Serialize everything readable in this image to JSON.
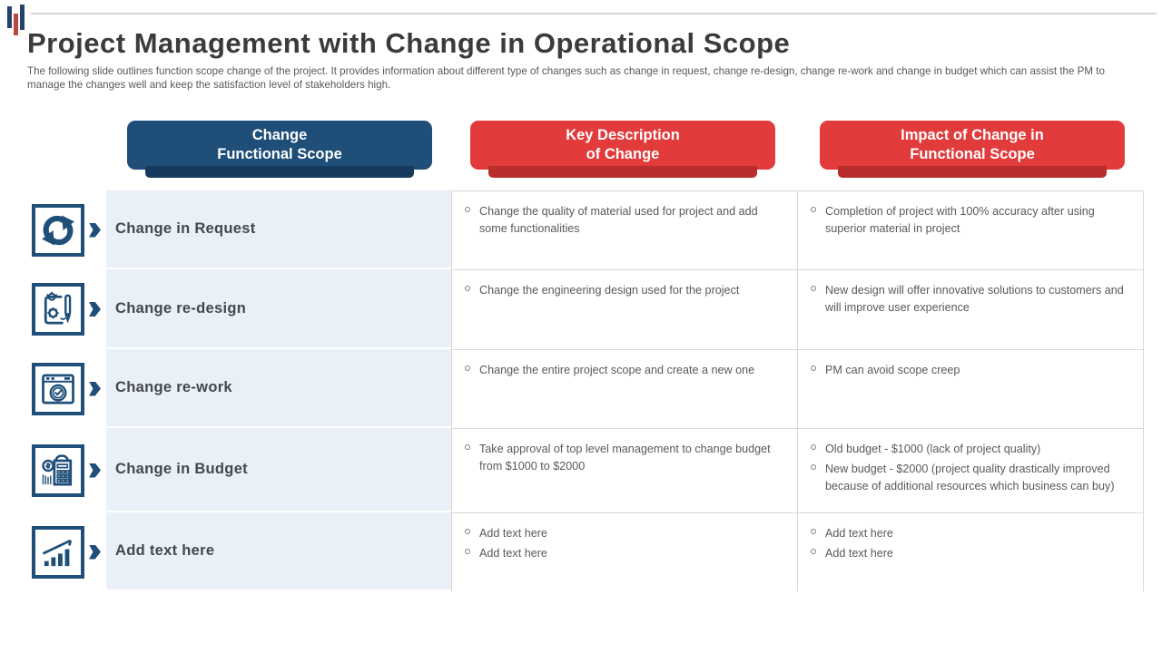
{
  "slide": {
    "title": "Project Management with Change in Operational Scope",
    "subtitle": "The following slide outlines function scope change of the project. It provides information about different type of changes such as change in request, change re-design, change re-work and change in budget which can assist the PM to manage the changes well and keep the satisfaction level of stakeholders high."
  },
  "colors": {
    "navy": "#1F4E79",
    "navy_dark": "#153A5E",
    "red": "#E23B3B",
    "red_dark": "#B92D2D",
    "label_bg": "#E9F0F8",
    "bottom_line_red": "#C13B3B",
    "body_text": "#595959"
  },
  "headers": [
    {
      "line1": "Change",
      "line2": "Functional Scope"
    },
    {
      "line1": "Key Description",
      "line2": "of Change"
    },
    {
      "line1": "Impact of Change in",
      "line2": "Functional Scope"
    }
  ],
  "rows": [
    {
      "icon": "sync-arrows-icon",
      "label": "Change in Request",
      "description": [
        "Change the quality of material used for project and add some functionalities"
      ],
      "impact": [
        "Completion of project with 100% accuracy after using superior material in project"
      ]
    },
    {
      "icon": "blueprint-design-icon",
      "label": "Change re-design",
      "description": [
        "Change the engineering design used for the project"
      ],
      "impact": [
        "New design will offer innovative solutions to customers and will improve user experience"
      ]
    },
    {
      "icon": "verified-window-icon",
      "label": "Change re-work",
      "description": [
        "Change the entire project scope and create a new one"
      ],
      "impact": [
        "PM can avoid scope creep"
      ]
    },
    {
      "icon": "budget-calculator-icon",
      "label": "Change in Budget",
      "description": [
        "Take approval of top level management to change budget from $1000 to $2000"
      ],
      "impact": [
        "Old budget - $1000 (lack of project quality)",
        "New budget - $2000 (project quality drastically improved because of additional resources which business can buy)"
      ]
    },
    {
      "icon": "growth-chart-icon",
      "label": "Add text here",
      "description": [
        "Add text here",
        "Add text here"
      ],
      "impact": [
        "Add text here",
        "Add text here"
      ]
    }
  ]
}
